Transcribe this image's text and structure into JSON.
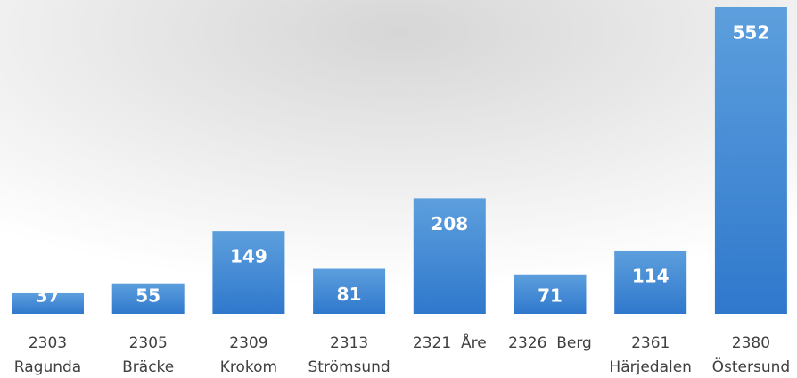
{
  "chart_data": {
    "type": "bar",
    "categories": [
      [
        "2303",
        "Ragunda"
      ],
      [
        "2305",
        "Bräcke"
      ],
      [
        "2309",
        "Krokom"
      ],
      [
        "2313",
        "Strömsund"
      ],
      [
        "2321  Åre"
      ],
      [
        "2326  Berg"
      ],
      [
        "2361",
        "Härjedalen"
      ],
      [
        "2380",
        "Östersund"
      ]
    ],
    "values": [
      37,
      55,
      149,
      81,
      208,
      71,
      114,
      552
    ],
    "color": "#4a8ad4"
  }
}
